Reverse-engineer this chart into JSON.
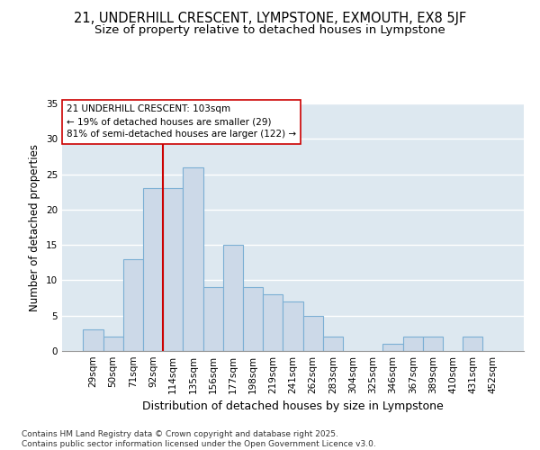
{
  "title1": "21, UNDERHILL CRESCENT, LYMPSTONE, EXMOUTH, EX8 5JF",
  "title2": "Size of property relative to detached houses in Lympstone",
  "xlabel": "Distribution of detached houses by size in Lympstone",
  "ylabel": "Number of detached properties",
  "categories": [
    "29sqm",
    "50sqm",
    "71sqm",
    "92sqm",
    "114sqm",
    "135sqm",
    "156sqm",
    "177sqm",
    "198sqm",
    "219sqm",
    "241sqm",
    "262sqm",
    "283sqm",
    "304sqm",
    "325sqm",
    "346sqm",
    "367sqm",
    "389sqm",
    "410sqm",
    "431sqm",
    "452sqm"
  ],
  "values": [
    3,
    2,
    13,
    23,
    23,
    26,
    9,
    15,
    9,
    8,
    7,
    5,
    2,
    0,
    0,
    1,
    2,
    2,
    0,
    2,
    0
  ],
  "bar_color": "#ccd9e8",
  "bar_edge_color": "#7bafd4",
  "fig_bg_color": "#ffffff",
  "plot_bg_color": "#dde8f0",
  "grid_color": "#ffffff",
  "vline_color": "#cc0000",
  "vline_index": 3.5,
  "annotation_line1": "21 UNDERHILL CRESCENT: 103sqm",
  "annotation_line2": "← 19% of detached houses are smaller (29)",
  "annotation_line3": "81% of semi-detached houses are larger (122) →",
  "annotation_box_color": "#cc0000",
  "ylim": [
    0,
    35
  ],
  "yticks": [
    0,
    5,
    10,
    15,
    20,
    25,
    30,
    35
  ],
  "footnote": "Contains HM Land Registry data © Crown copyright and database right 2025.\nContains public sector information licensed under the Open Government Licence v3.0.",
  "title1_fontsize": 10.5,
  "title2_fontsize": 9.5,
  "xlabel_fontsize": 9,
  "ylabel_fontsize": 8.5,
  "tick_fontsize": 7.5,
  "annotation_fontsize": 7.5,
  "footnote_fontsize": 6.5
}
